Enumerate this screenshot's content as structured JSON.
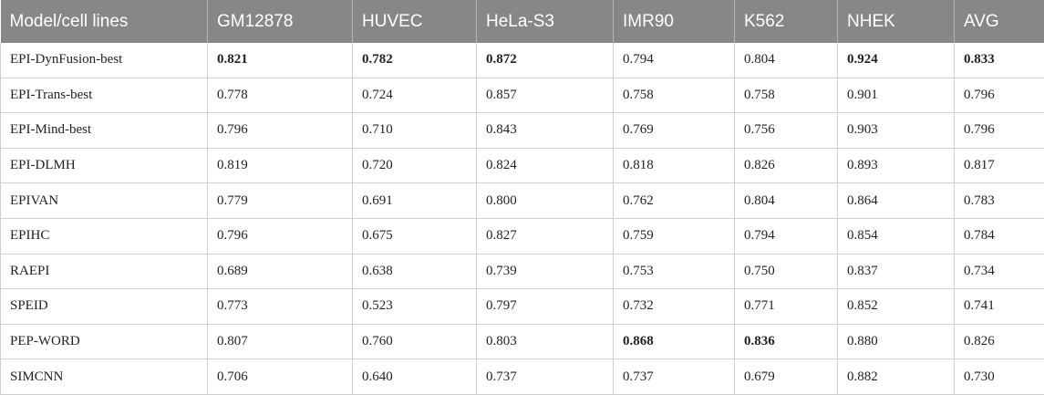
{
  "table": {
    "headers": [
      "Model/cell lines",
      "GM12878",
      "HUVEC",
      "HeLa-S3",
      "IMR90",
      "K562",
      "NHEK",
      "AVG"
    ],
    "rows": [
      {
        "cells": [
          "EPI-DynFusion-best",
          "0.821",
          "0.782",
          "0.872",
          "0.794",
          "0.804",
          "0.924",
          "0.833"
        ],
        "bold": [
          false,
          true,
          true,
          true,
          false,
          false,
          true,
          true
        ]
      },
      {
        "cells": [
          "EPI-Trans-best",
          "0.778",
          "0.724",
          "0.857",
          "0.758",
          "0.758",
          "0.901",
          "0.796"
        ],
        "bold": [
          false,
          false,
          false,
          false,
          false,
          false,
          false,
          false
        ]
      },
      {
        "cells": [
          "EPI-Mind-best",
          "0.796",
          "0.710",
          "0.843",
          "0.769",
          "0.756",
          "0.903",
          "0.796"
        ],
        "bold": [
          false,
          false,
          false,
          false,
          false,
          false,
          false,
          false
        ]
      },
      {
        "cells": [
          "EPI-DLMH",
          "0.819",
          "0.720",
          "0.824",
          "0.818",
          "0.826",
          "0.893",
          "0.817"
        ],
        "bold": [
          false,
          false,
          false,
          false,
          false,
          false,
          false,
          false
        ]
      },
      {
        "cells": [
          "EPIVAN",
          "0.779",
          "0.691",
          "0.800",
          "0.762",
          "0.804",
          "0.864",
          "0.783"
        ],
        "bold": [
          false,
          false,
          false,
          false,
          false,
          false,
          false,
          false
        ]
      },
      {
        "cells": [
          "EPIHC",
          "0.796",
          "0.675",
          "0.827",
          "0.759",
          "0.794",
          "0.854",
          "0.784"
        ],
        "bold": [
          false,
          false,
          false,
          false,
          false,
          false,
          false,
          false
        ]
      },
      {
        "cells": [
          "RAEPI",
          "0.689",
          "0.638",
          "0.739",
          "0.753",
          "0.750",
          "0.837",
          "0.734"
        ],
        "bold": [
          false,
          false,
          false,
          false,
          false,
          false,
          false,
          false
        ]
      },
      {
        "cells": [
          "SPEID",
          "0.773",
          "0.523",
          "0.797",
          "0.732",
          "0.771",
          "0.852",
          "0.741"
        ],
        "bold": [
          false,
          false,
          false,
          false,
          false,
          false,
          false,
          false
        ]
      },
      {
        "cells": [
          "PEP-WORD",
          "0.807",
          "0.760",
          "0.803",
          "0.868",
          "0.836",
          "0.880",
          "0.826"
        ],
        "bold": [
          false,
          false,
          false,
          false,
          true,
          true,
          false,
          false
        ]
      },
      {
        "cells": [
          "SIMCNN",
          "0.706",
          "0.640",
          "0.737",
          "0.737",
          "0.679",
          "0.882",
          "0.730"
        ],
        "bold": [
          false,
          false,
          false,
          false,
          false,
          false,
          false,
          false
        ]
      }
    ]
  },
  "colors": {
    "header_bg": "#878787",
    "header_text": "#ffffff",
    "grid": "#cfcfcf"
  }
}
